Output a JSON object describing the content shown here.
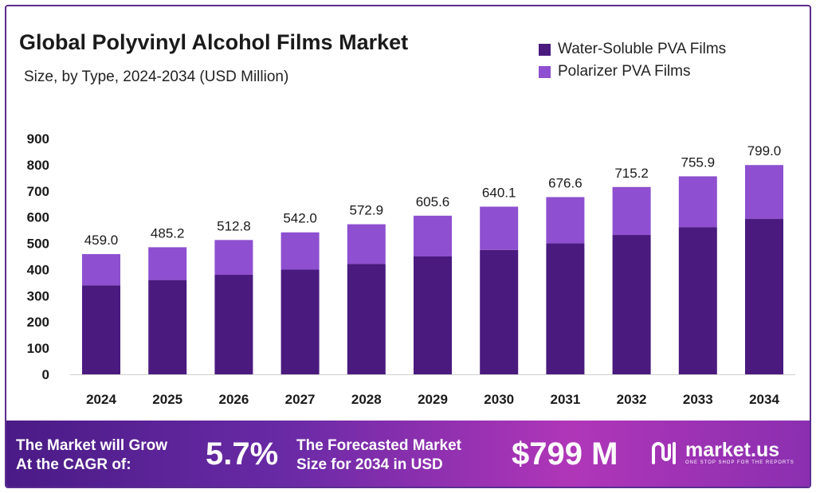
{
  "header": {
    "title": "Global Polyvinyl Alcohol Films Market",
    "subtitle": "Size, by Type, 2024-2034 (USD Million)"
  },
  "legend": [
    {
      "label": "Water-Soluble PVA Films",
      "color": "#4a1a7f"
    },
    {
      "label": "Polarizer PVA Films",
      "color": "#8e4fd0"
    }
  ],
  "chart_data": {
    "type": "bar",
    "stacked": true,
    "title": "Global Polyvinyl Alcohol Films Market",
    "subtitle": "Size, by Type, 2024-2034 (USD Million)",
    "categories": [
      "2024",
      "2025",
      "2026",
      "2027",
      "2028",
      "2029",
      "2030",
      "2031",
      "2032",
      "2033",
      "2034"
    ],
    "series": [
      {
        "name": "Water-Soluble PVA Films",
        "color": "#4a1a7f",
        "values": [
          340,
          360,
          380,
          400,
          422,
          450,
          475,
          500,
          532,
          562,
          594
        ]
      },
      {
        "name": "Polarizer PVA Films",
        "color": "#8e4fd0",
        "values": [
          119.0,
          125.2,
          132.8,
          142.0,
          150.9,
          155.6,
          165.1,
          176.6,
          183.2,
          193.9,
          205.0
        ]
      }
    ],
    "totals": [
      "459.0",
      "485.2",
      "512.8",
      "542.0",
      "572.9",
      "605.6",
      "640.1",
      "676.6",
      "715.2",
      "755.9",
      "799.0"
    ],
    "yticks": [
      "0",
      "100",
      "200",
      "300",
      "400",
      "500",
      "600",
      "700",
      "800",
      "900"
    ],
    "ylim": [
      0,
      900
    ],
    "grid": false,
    "legend_position": "top-right"
  },
  "footer": {
    "cagr_text_1": "The Market will Grow",
    "cagr_text_2": "At the CAGR of:",
    "cagr_value": "5.7%",
    "forecast_text_1": "The Forecasted Market",
    "forecast_text_2": "Size for 2034 in USD",
    "forecast_value": "$799 M",
    "brand_name": "market.us",
    "brand_tagline": "ONE STOP SHOP FOR THE REPORTS"
  }
}
